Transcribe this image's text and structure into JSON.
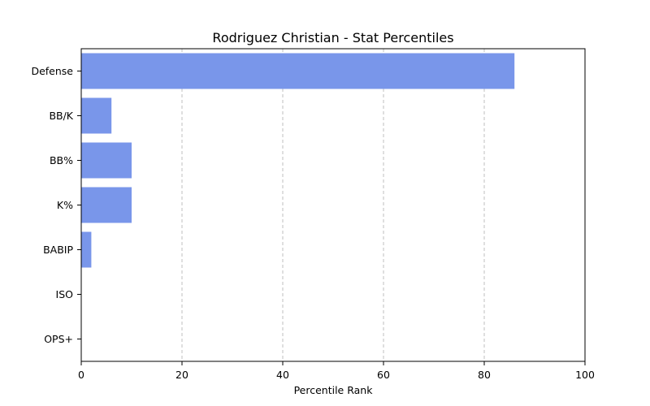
{
  "chart_data": {
    "type": "bar",
    "orientation": "horizontal",
    "title": "Rodriguez Christian - Stat Percentiles",
    "xlabel": "Percentile Rank",
    "ylabel": "",
    "xlim": [
      0,
      100
    ],
    "xticks": [
      "0",
      "20",
      "40",
      "60",
      "80",
      "100"
    ],
    "grid": "x-dashed",
    "bar_color": "#7996EA",
    "categories": [
      "Defense",
      "BB/K",
      "BB%",
      "K%",
      "BABIP",
      "ISO",
      "OPS+"
    ],
    "values": [
      86,
      6,
      10,
      10,
      2,
      0,
      0
    ]
  }
}
